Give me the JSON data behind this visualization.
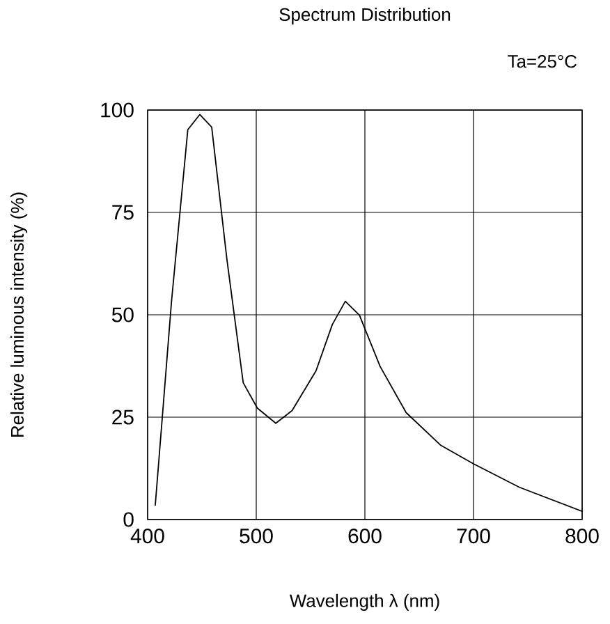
{
  "chart_data": {
    "type": "line",
    "title": "Spectrum Distribution",
    "xlabel": "Wavelength  λ (nm)",
    "ylabel": "Relative luminous intensity  (%)",
    "annotations": [
      "Ta=25°C"
    ],
    "x": [
      407,
      414,
      422,
      437,
      448,
      459,
      473,
      488,
      501,
      518,
      533,
      555,
      570,
      582,
      595,
      614,
      638,
      670,
      700,
      742,
      800
    ],
    "series": [
      {
        "color": "#000000",
        "values": [
          3.4,
          26.6,
          53.3,
          95.2,
          98.9,
          95.8,
          63.5,
          33.4,
          27.2,
          23.5,
          26.6,
          36.3,
          47.6,
          53.3,
          49.9,
          37.4,
          26.1,
          18.1,
          13.6,
          7.9,
          2.0
        ]
      }
    ],
    "xlim": [
      400,
      800
    ],
    "ylim": [
      0,
      100
    ],
    "xticks": [
      400,
      500,
      600,
      700,
      800
    ],
    "yticks": [
      0,
      25,
      50,
      75,
      100
    ],
    "grid": true,
    "marker": "none",
    "line_style": "solid"
  }
}
